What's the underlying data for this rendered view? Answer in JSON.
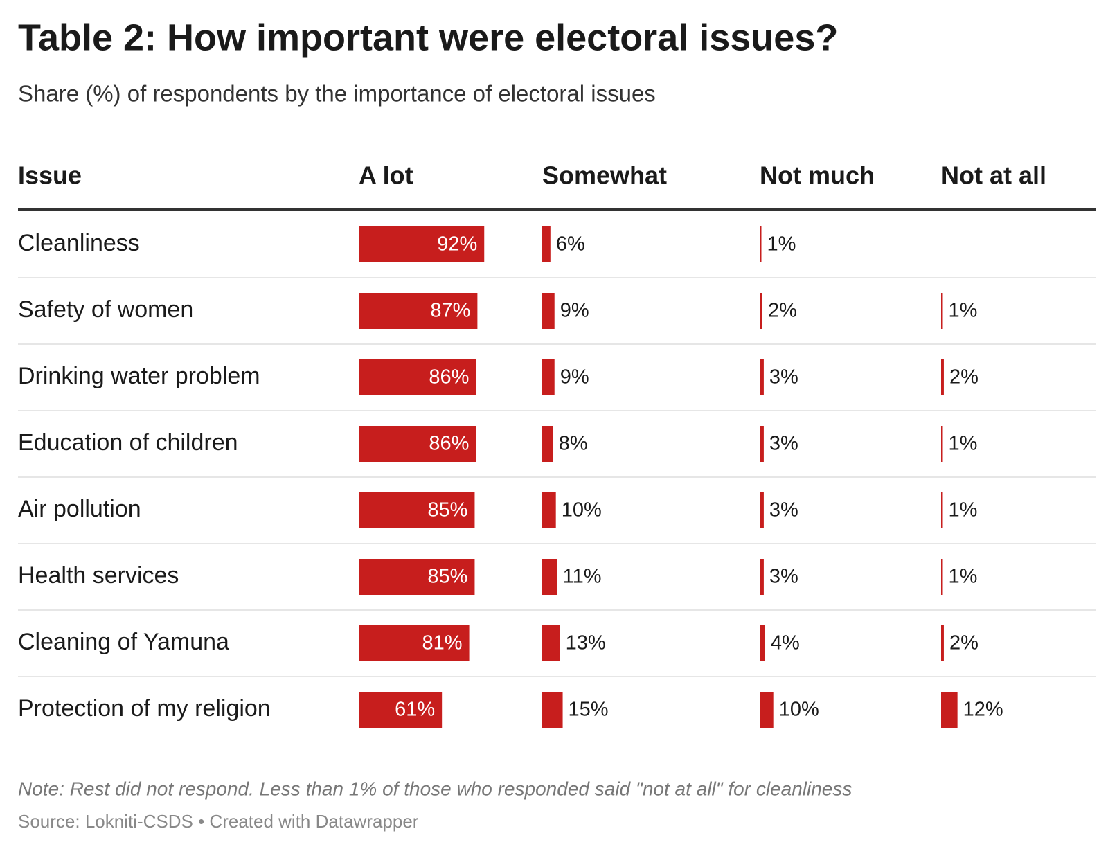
{
  "title": "Table 2: How important were electoral issues?",
  "subtitle": "Share (%) of respondents by the importance of electoral issues",
  "table": {
    "columns": [
      "Issue",
      "A lot",
      "Somewhat",
      "Not much",
      "Not at all"
    ],
    "color": "#c71e1d",
    "rows": [
      {
        "issue": "Cleanliness",
        "values": [
          92,
          6,
          1,
          null
        ],
        "value_labels": [
          "92%",
          "6%",
          "1%",
          null
        ]
      },
      {
        "issue": "Safety of women",
        "values": [
          87,
          9,
          2,
          1
        ],
        "value_labels": [
          "87%",
          "9%",
          "2%",
          "1%"
        ]
      },
      {
        "issue": "Drinking water problem",
        "values": [
          86,
          9,
          3,
          2
        ],
        "value_labels": [
          "86%",
          "9%",
          "3%",
          "2%"
        ]
      },
      {
        "issue": "Education of children",
        "values": [
          86,
          8,
          3,
          1
        ],
        "value_labels": [
          "86%",
          "8%",
          "3%",
          "1%"
        ]
      },
      {
        "issue": "Air pollution",
        "values": [
          85,
          10,
          3,
          1
        ],
        "value_labels": [
          "85%",
          "10%",
          "3%",
          "1%"
        ]
      },
      {
        "issue": "Health services",
        "values": [
          85,
          11,
          3,
          1
        ],
        "value_labels": [
          "85%",
          "11%",
          "3%",
          "1%"
        ]
      },
      {
        "issue": "Cleaning of Yamuna",
        "values": [
          81,
          13,
          4,
          2
        ],
        "value_labels": [
          "81%",
          "13%",
          "4%",
          "2%"
        ]
      },
      {
        "issue": "Protection of my religion",
        "values": [
          61,
          15,
          10,
          12
        ],
        "value_labels": [
          "61%",
          "15%",
          "10%",
          "12%"
        ]
      }
    ]
  },
  "note": "Note: Rest did not respond. Less than 1% of those who responded said \"not at all\" for cleanliness",
  "source": "Source: Lokniti-CSDS • Created with Datawrapper"
}
